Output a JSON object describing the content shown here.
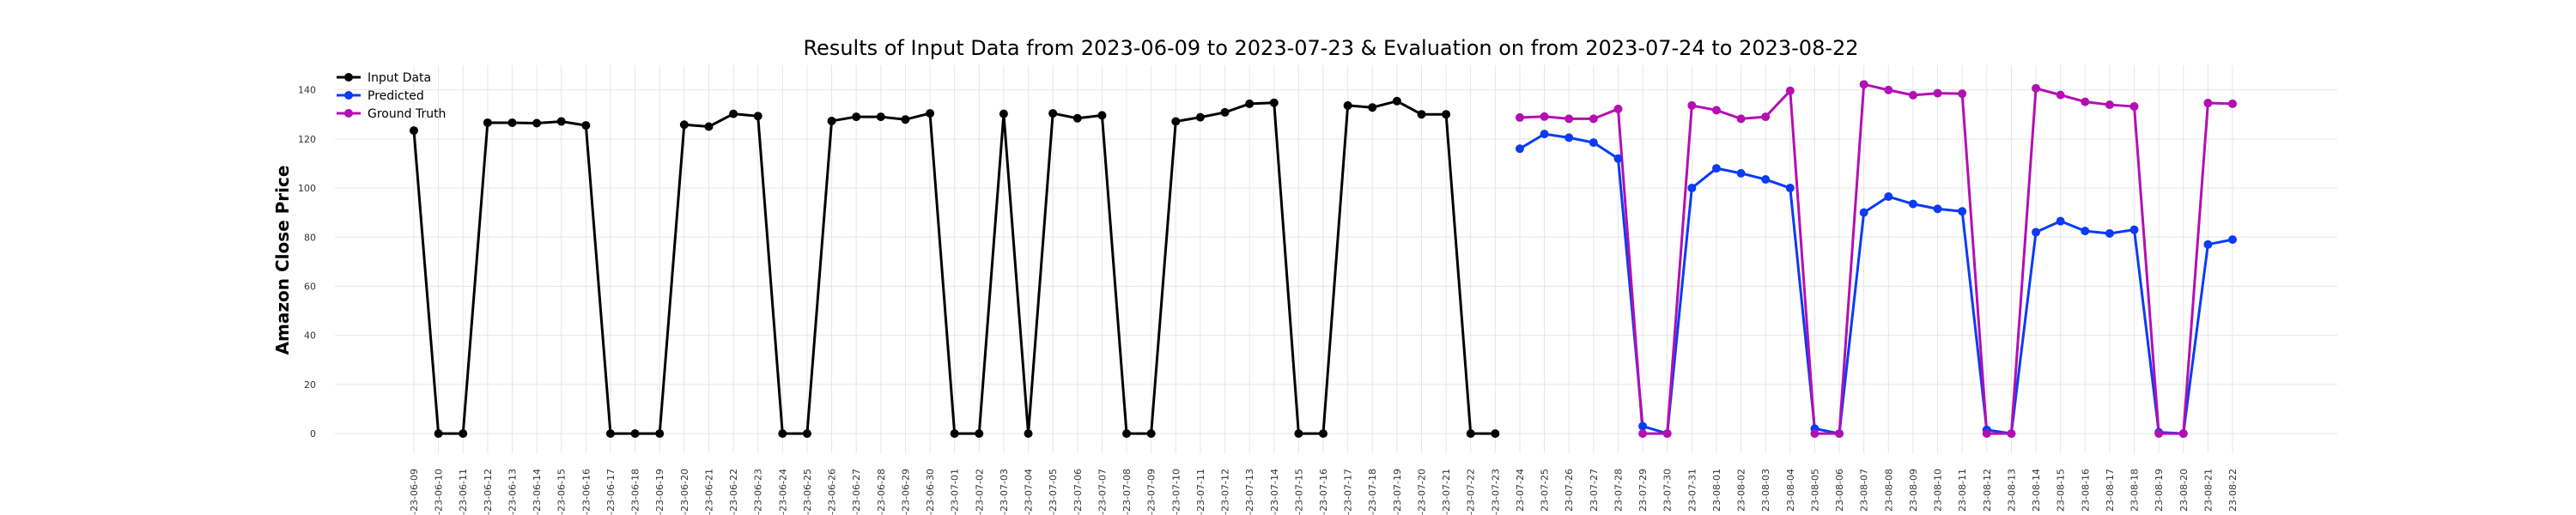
{
  "chart_data": {
    "type": "line",
    "title": "Results of Input Data from 2023-06-09 to 2023-07-23 & Evaluation on from 2023-07-24 to 2023-08-22",
    "xlabel": "",
    "ylabel": "Amazon Close Price",
    "ylim": [
      -8,
      150
    ],
    "yticks": [
      0,
      20,
      40,
      60,
      80,
      100,
      120,
      140
    ],
    "grid": true,
    "legend_position": "top-left",
    "categories": [
      "2023-06-09",
      "2023-06-10",
      "2023-06-11",
      "2023-06-12",
      "2023-06-13",
      "2023-06-14",
      "2023-06-15",
      "2023-06-16",
      "2023-06-17",
      "2023-06-18",
      "2023-06-19",
      "2023-06-20",
      "2023-06-21",
      "2023-06-22",
      "2023-06-23",
      "2023-06-24",
      "2023-06-25",
      "2023-06-26",
      "2023-06-27",
      "2023-06-28",
      "2023-06-29",
      "2023-06-30",
      "2023-07-01",
      "2023-07-02",
      "2023-07-03",
      "2023-07-04",
      "2023-07-05",
      "2023-07-06",
      "2023-07-07",
      "2023-07-08",
      "2023-07-09",
      "2023-07-10",
      "2023-07-11",
      "2023-07-12",
      "2023-07-13",
      "2023-07-14",
      "2023-07-15",
      "2023-07-16",
      "2023-07-17",
      "2023-07-18",
      "2023-07-19",
      "2023-07-20",
      "2023-07-21",
      "2023-07-22",
      "2023-07-23",
      "2023-07-24",
      "2023-07-25",
      "2023-07-26",
      "2023-07-27",
      "2023-07-28",
      "2023-07-29",
      "2023-07-30",
      "2023-07-31",
      "2023-08-01",
      "2023-08-02",
      "2023-08-03",
      "2023-08-04",
      "2023-08-05",
      "2023-08-06",
      "2023-08-07",
      "2023-08-08",
      "2023-08-09",
      "2023-08-10",
      "2023-08-11",
      "2023-08-12",
      "2023-08-13",
      "2023-08-14",
      "2023-08-15",
      "2023-08-16",
      "2023-08-17",
      "2023-08-18",
      "2023-08-19",
      "2023-08-20",
      "2023-08-21",
      "2023-08-22"
    ],
    "tick_labels": [
      "-23-06-09",
      "-23-06-10",
      "-23-06-11",
      "-23-06-12",
      "-23-06-13",
      "-23-06-14",
      "-23-06-15",
      "-23-06-16",
      "-23-06-17",
      "-23-06-18",
      "-23-06-19",
      "-23-06-20",
      "-23-06-21",
      "-23-06-22",
      "-23-06-23",
      "-23-06-24",
      "-23-06-25",
      "-23-06-26",
      "-23-06-27",
      "-23-06-28",
      "-23-06-29",
      "-23-06-30",
      "-23-07-01",
      "-23-07-02",
      "-23-07-03",
      "-23-07-04",
      "-23-07-05",
      "-23-07-06",
      "-23-07-07",
      "-23-07-08",
      "-23-07-09",
      "-23-07-10",
      "-23-07-11",
      "-23-07-12",
      "-23-07-13",
      "-23-07-14",
      "-23-07-15",
      "-23-07-16",
      "-23-07-17",
      "-23-07-18",
      "-23-07-19",
      "-23-07-20",
      "-23-07-21",
      "-23-07-22",
      "-23-07-23",
      "23-07-24",
      "23-07-25",
      "23-07-26",
      "23-07-27",
      "23-07-28",
      "23-07-29",
      "23-07-30",
      "23-07-31",
      "23-08-01",
      "23-08-02",
      "23-08-03",
      "23-08-04",
      "23-08-05",
      "23-08-06",
      "23-08-07",
      "23-08-08",
      "23-08-09",
      "23-08-10",
      "23-08-11",
      "23-08-12",
      "23-08-13",
      "23-08-14",
      "23-08-15",
      "23-08-16",
      "23-08-17",
      "23-08-18",
      "23-08-19",
      "23-08-20",
      "23-08-21",
      "23-08-22"
    ],
    "series": [
      {
        "name": "Input Data",
        "color": "#000000",
        "x": [
          "2023-06-09",
          "2023-06-10",
          "2023-06-11",
          "2023-06-12",
          "2023-06-13",
          "2023-06-14",
          "2023-06-15",
          "2023-06-16",
          "2023-06-17",
          "2023-06-18",
          "2023-06-19",
          "2023-06-20",
          "2023-06-21",
          "2023-06-22",
          "2023-06-23",
          "2023-06-24",
          "2023-06-25",
          "2023-06-26",
          "2023-06-27",
          "2023-06-28",
          "2023-06-29",
          "2023-06-30",
          "2023-07-01",
          "2023-07-02",
          "2023-07-03",
          "2023-07-04",
          "2023-07-05",
          "2023-07-06",
          "2023-07-07",
          "2023-07-08",
          "2023-07-09",
          "2023-07-10",
          "2023-07-11",
          "2023-07-12",
          "2023-07-13",
          "2023-07-14",
          "2023-07-15",
          "2023-07-16",
          "2023-07-17",
          "2023-07-18",
          "2023-07-19",
          "2023-07-20",
          "2023-07-21",
          "2023-07-22",
          "2023-07-23"
        ],
        "values": [
          123.4,
          0,
          0,
          126.6,
          126.6,
          126.4,
          127.1,
          125.5,
          0,
          0,
          0,
          125.8,
          125.0,
          130.2,
          129.3,
          0,
          0,
          127.3,
          129.0,
          129.0,
          127.9,
          130.4,
          0,
          0,
          130.2,
          0,
          130.4,
          128.4,
          129.6,
          0,
          0,
          127.1,
          128.8,
          130.8,
          134.3,
          134.7,
          0,
          0,
          133.6,
          132.8,
          135.4,
          130.0,
          130.0,
          0,
          0
        ]
      },
      {
        "name": "Predicted",
        "color": "#0b3bf5",
        "x": [
          "2023-07-24",
          "2023-07-25",
          "2023-07-26",
          "2023-07-27",
          "2023-07-28",
          "2023-07-29",
          "2023-07-30",
          "2023-07-31",
          "2023-08-01",
          "2023-08-02",
          "2023-08-03",
          "2023-08-04",
          "2023-08-05",
          "2023-08-06",
          "2023-08-07",
          "2023-08-08",
          "2023-08-09",
          "2023-08-10",
          "2023-08-11",
          "2023-08-12",
          "2023-08-13",
          "2023-08-14",
          "2023-08-15",
          "2023-08-16",
          "2023-08-17",
          "2023-08-18",
          "2023-08-19",
          "2023-08-20",
          "2023-08-21",
          "2023-08-22"
        ],
        "values": [
          116,
          122,
          120.5,
          118.5,
          112,
          3,
          0,
          100,
          108,
          106,
          103.5,
          100,
          2,
          0,
          90,
          96.5,
          93.5,
          91.5,
          90.5,
          1.5,
          0,
          82,
          86.5,
          82.5,
          81.5,
          83,
          0.5,
          0,
          77,
          79
        ]
      },
      {
        "name": "Ground Truth",
        "color": "#b30fb3",
        "x": [
          "2023-07-24",
          "2023-07-25",
          "2023-07-26",
          "2023-07-27",
          "2023-07-28",
          "2023-07-29",
          "2023-07-30",
          "2023-07-31",
          "2023-08-01",
          "2023-08-02",
          "2023-08-03",
          "2023-08-04",
          "2023-08-05",
          "2023-08-06",
          "2023-08-07",
          "2023-08-08",
          "2023-08-09",
          "2023-08-10",
          "2023-08-11",
          "2023-08-12",
          "2023-08-13",
          "2023-08-14",
          "2023-08-15",
          "2023-08-16",
          "2023-08-17",
          "2023-08-18",
          "2023-08-19",
          "2023-08-20",
          "2023-08-21",
          "2023-08-22"
        ],
        "values": [
          128.7,
          129.1,
          128.2,
          128.2,
          132.2,
          0,
          0,
          133.6,
          131.7,
          128.2,
          129.0,
          139.6,
          0,
          0,
          142.2,
          139.9,
          137.8,
          138.6,
          138.4,
          0,
          0,
          140.6,
          137.9,
          135.1,
          133.9,
          133.2,
          0,
          0,
          134.6,
          134.3
        ]
      }
    ]
  }
}
